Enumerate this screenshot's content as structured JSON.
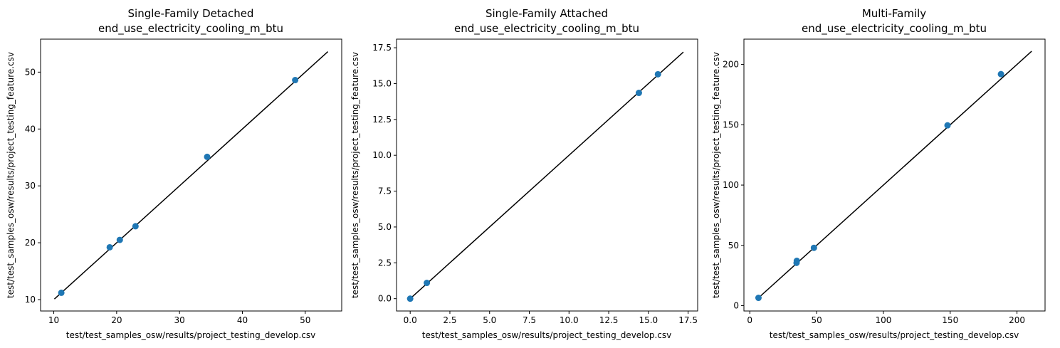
{
  "colors": {
    "point": "#1f77b4",
    "line": "#000000",
    "axes": "#000000"
  },
  "chart_data": [
    {
      "type": "scatter",
      "title": [
        "Single-Family Detached",
        "end_use_electricity_cooling_m_btu"
      ],
      "xlabel": "test/test_samples_osw/results/project_testing_develop.csv",
      "ylabel": "test/test_samples_osw/results/project_testing_feature.csv",
      "xlim": [
        7.9,
        55.8
      ],
      "ylim": [
        8.0,
        55.8
      ],
      "xticks": [
        10,
        20,
        30,
        40,
        50
      ],
      "yticks": [
        10,
        20,
        30,
        40,
        50
      ],
      "x_tick_labels": [
        "10",
        "20",
        "30",
        "40",
        "50"
      ],
      "y_tick_labels": [
        "10",
        "20",
        "30",
        "40",
        "50"
      ],
      "points": {
        "x": [
          11.2,
          18.9,
          20.5,
          23.0,
          34.4,
          48.4
        ],
        "y": [
          11.2,
          19.2,
          20.5,
          22.9,
          35.1,
          48.6
        ]
      },
      "reference_line": {
        "x": [
          10.1,
          53.6
        ],
        "y": [
          10.1,
          53.6
        ]
      }
    },
    {
      "type": "scatter",
      "title": [
        "Single-Family Attached",
        "end_use_electricity_cooling_m_btu"
      ],
      "xlabel": "test/test_samples_osw/results/project_testing_develop.csv",
      "ylabel": "test/test_samples_osw/results/project_testing_feature.csv",
      "xlim": [
        -0.86,
        18.1
      ],
      "ylim": [
        -0.86,
        18.1
      ],
      "xticks": [
        0,
        2.5,
        5,
        7.5,
        10,
        12.5,
        15,
        17.5
      ],
      "yticks": [
        0,
        2.5,
        5,
        7.5,
        10,
        12.5,
        15,
        17.5
      ],
      "x_tick_labels": [
        "0.0",
        "2.5",
        "5.0",
        "7.5",
        "10.0",
        "12.5",
        "15.0",
        "17.5"
      ],
      "y_tick_labels": [
        "0.0",
        "2.5",
        "5.0",
        "7.5",
        "10.0",
        "12.5",
        "15.0",
        "17.5"
      ],
      "points": {
        "x": [
          0.0,
          1.05,
          14.4,
          15.6
        ],
        "y": [
          0.0,
          1.1,
          14.35,
          15.65
        ]
      },
      "reference_line": {
        "x": [
          0.0,
          17.2
        ],
        "y": [
          0.0,
          17.2
        ]
      }
    },
    {
      "type": "scatter",
      "title": [
        "Multi-Family",
        "end_use_electricity_cooling_m_btu"
      ],
      "xlabel": "test/test_samples_osw/results/project_testing_develop.csv",
      "ylabel": "test/test_samples_osw/results/project_testing_feature.csv",
      "xlim": [
        -4.4,
        221.0
      ],
      "ylim": [
        -4.4,
        221.0
      ],
      "xticks": [
        0,
        50,
        100,
        150,
        200
      ],
      "yticks": [
        0,
        50,
        100,
        150,
        200
      ],
      "x_tick_labels": [
        "0",
        "50",
        "100",
        "150",
        "200"
      ],
      "y_tick_labels": [
        "0",
        "50",
        "100",
        "150",
        "200"
      ],
      "points": {
        "x": [
          6.5,
          35.0,
          35.2,
          48.0,
          148.0,
          188.0
        ],
        "y": [
          6.5,
          35.5,
          37.2,
          48.0,
          149.5,
          192.0
        ]
      },
      "reference_line": {
        "x": [
          6.0,
          211.0
        ],
        "y": [
          6.0,
          211.0
        ]
      }
    }
  ]
}
